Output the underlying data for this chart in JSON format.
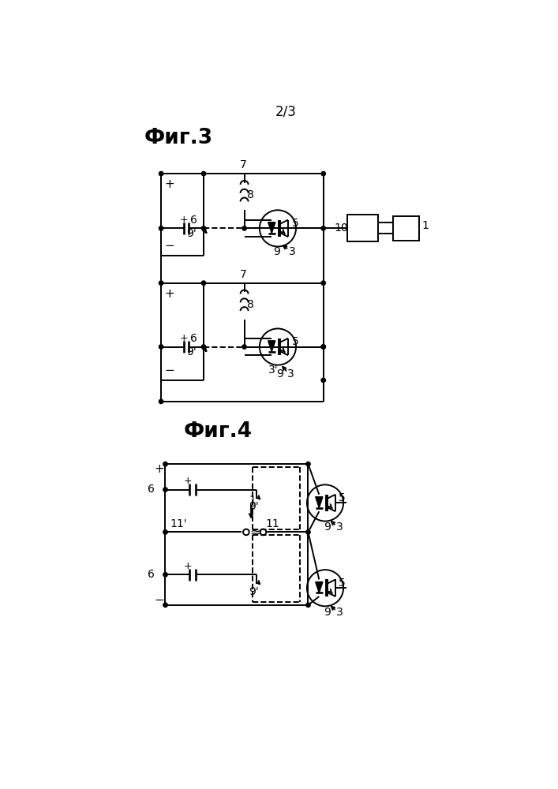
{
  "title": "2/3",
  "fig3_label": "Фиг.3",
  "fig4_label": "Фиг.4",
  "bg_color": "#ffffff",
  "line_color": "#000000",
  "lw": 1.4
}
